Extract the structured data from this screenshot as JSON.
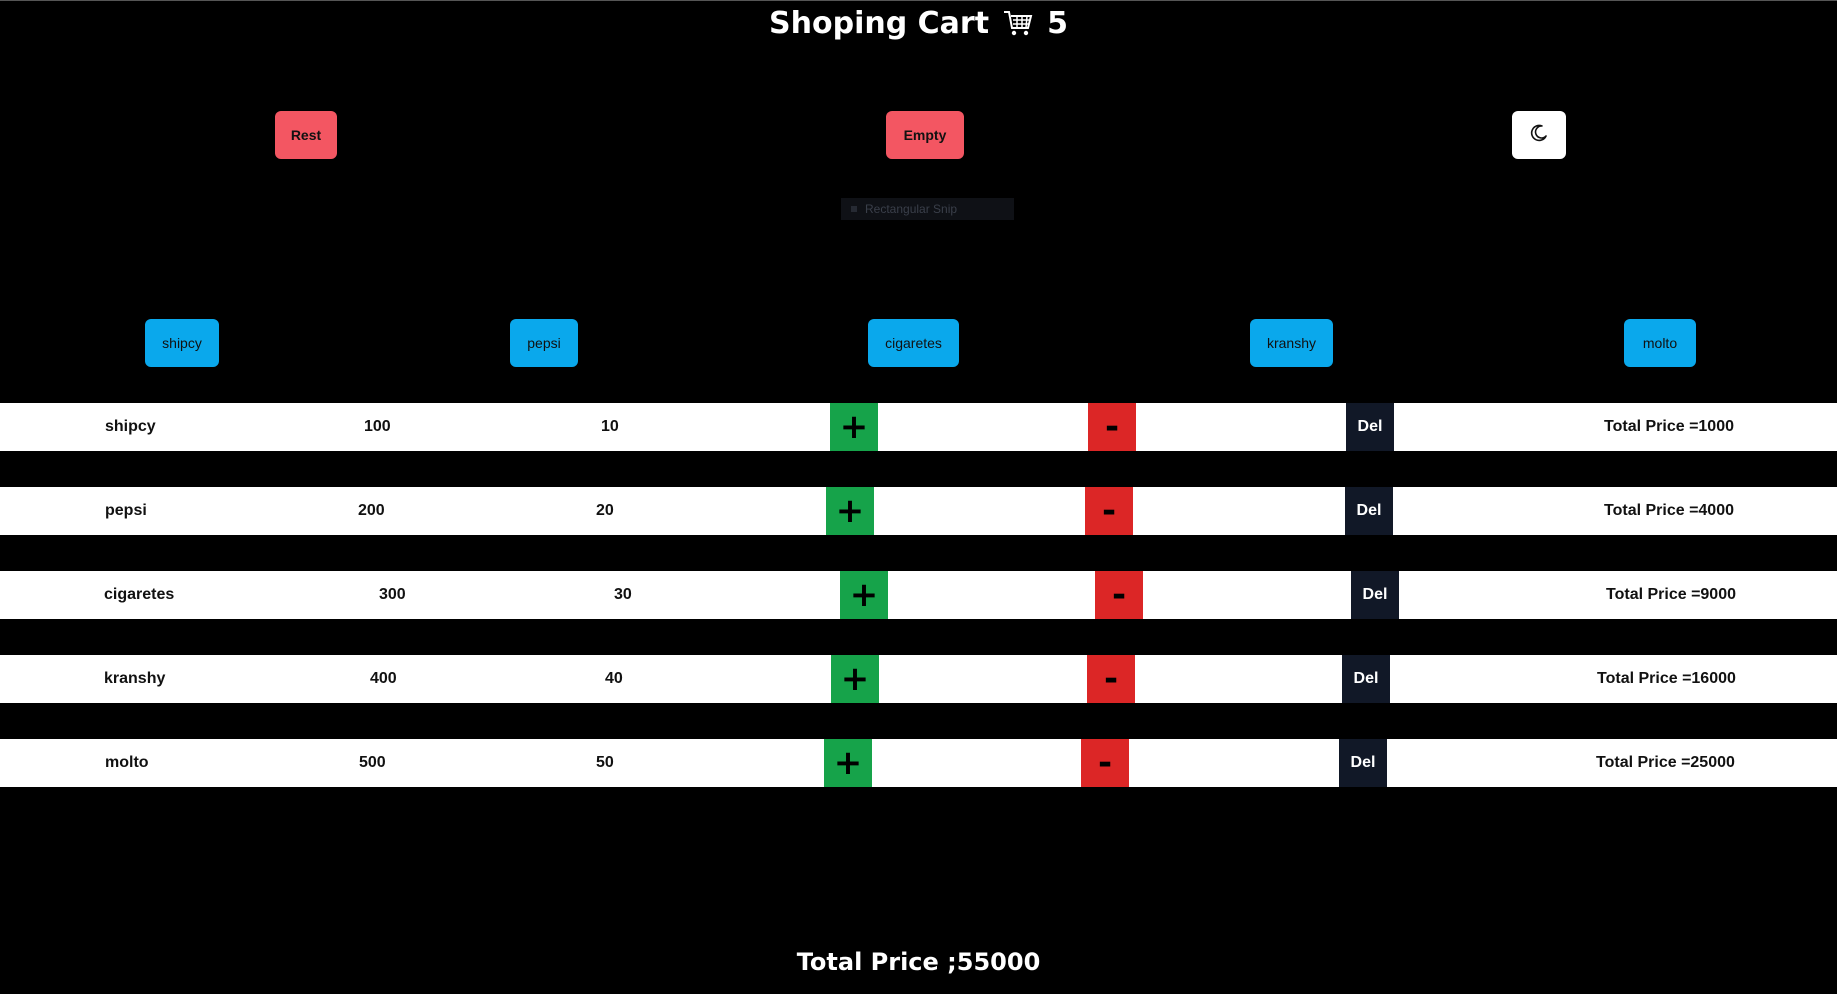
{
  "header": {
    "title": "Shoping Cart",
    "cart_icon": "cart-icon",
    "count": "5"
  },
  "actions": {
    "rest_label": "Rest",
    "empty_label": "Empty",
    "theme_icon": "moon-icon"
  },
  "snip_overlay": {
    "label": "Rectangular Snip"
  },
  "products": [
    {
      "label": "shipcy"
    },
    {
      "label": "pepsi"
    },
    {
      "label": "cigaretes"
    },
    {
      "label": "kranshy"
    },
    {
      "label": "molto"
    }
  ],
  "cart_rows": [
    {
      "name": "shipcy",
      "price": "100",
      "qty": "10",
      "plus": "+",
      "minus": "-",
      "del": "Del",
      "total": "Total Price =1000"
    },
    {
      "name": "pepsi",
      "price": "200",
      "qty": "20",
      "plus": "+",
      "minus": "-",
      "del": "Del",
      "total": "Total Price =4000"
    },
    {
      "name": "cigaretes",
      "price": "300",
      "qty": "30",
      "plus": "+",
      "minus": "-",
      "del": "Del",
      "total": "Total Price =9000"
    },
    {
      "name": "kranshy",
      "price": "400",
      "qty": "40",
      "plus": "+",
      "minus": "-",
      "del": "Del",
      "total": "Total Price =16000"
    },
    {
      "name": "molto",
      "price": "500",
      "qty": "50",
      "plus": "+",
      "minus": "-",
      "del": "Del",
      "total": "Total Price =25000"
    }
  ],
  "summary": {
    "grand_total": "Total Price ;55000"
  },
  "colors": {
    "background": "#000000",
    "action_red": "#f35662",
    "product_blue": "#0aa8ec",
    "plus_green": "#16a34a",
    "minus_red": "#dc2626",
    "del_dark": "#111827"
  }
}
